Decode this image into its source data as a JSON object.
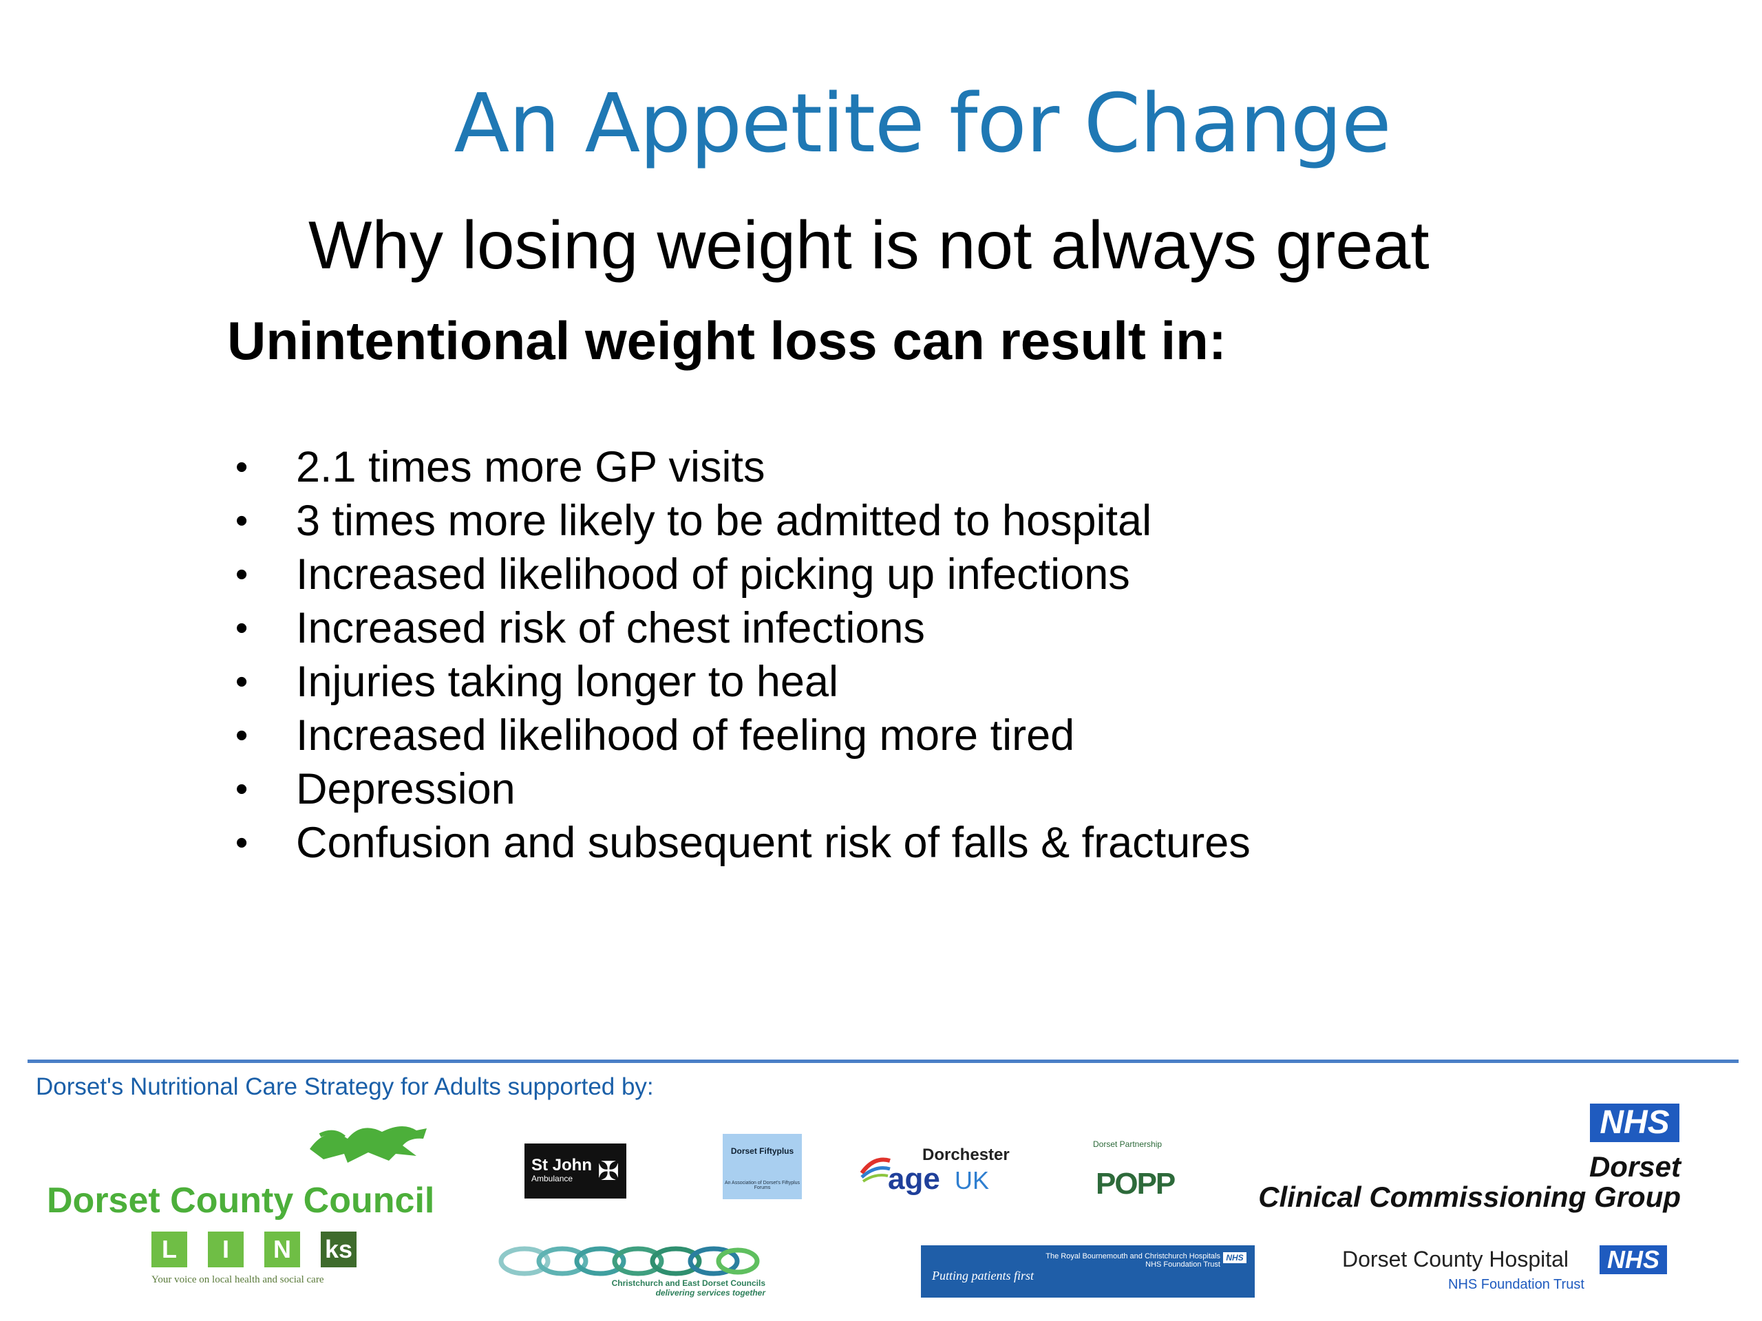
{
  "slide": {
    "title": "An Appetite for Change",
    "subtitle": "Why losing weight is not always great",
    "heading": "Unintentional weight loss can result in:",
    "bullets": [
      "2.1 times more GP visits",
      "3 times more likely to be admitted to hospital",
      "Increased likelihood of picking up infections",
      "Increased risk of chest infections",
      "Injuries taking longer to heal",
      "Increased likelihood of feeling more tired",
      "Depression",
      "Confusion and subsequent risk of falls & fractures"
    ]
  },
  "footer": {
    "supported_by": "Dorset's Nutritional Care Strategy for Adults supported by:",
    "dorset_county_council": "Dorset County Council",
    "links_letters": [
      "L",
      "I",
      "N",
      "ks"
    ],
    "links_tagline": "Your voice on local health and social care",
    "st_john": {
      "name": "St John",
      "sub": "Ambulance"
    },
    "fiftyplus": {
      "name": "Dorset Fiftyplus",
      "sub": "An Association of Dorset's Fiftyplus Forums"
    },
    "age_uk": {
      "place": "Dorchester",
      "age": "age",
      "uk": "UK"
    },
    "popp": {
      "arc": "Dorset Partnership",
      "name": "POPP"
    },
    "ccg": {
      "nhs": "NHS",
      "line1": "Dorset",
      "line2": "Clinical Commissioning Group"
    },
    "christchurch": {
      "line1": "Christchurch and East Dorset Councils",
      "line2": "delivering services together"
    },
    "rbh": {
      "slogan": "Putting patients first",
      "name": "The Royal Bournemouth and Christchurch Hospitals",
      "trust": "NHS Foundation Trust",
      "nhs": "NHS"
    },
    "dch": {
      "name": "Dorset County Hospital",
      "nhs": "NHS",
      "trust": "NHS Foundation Trust"
    }
  },
  "colors": {
    "title": "#1f78b4",
    "divider": "#4a7fc7",
    "nhs_blue": "#1f5bbf",
    "council_green": "#4caf3a"
  }
}
